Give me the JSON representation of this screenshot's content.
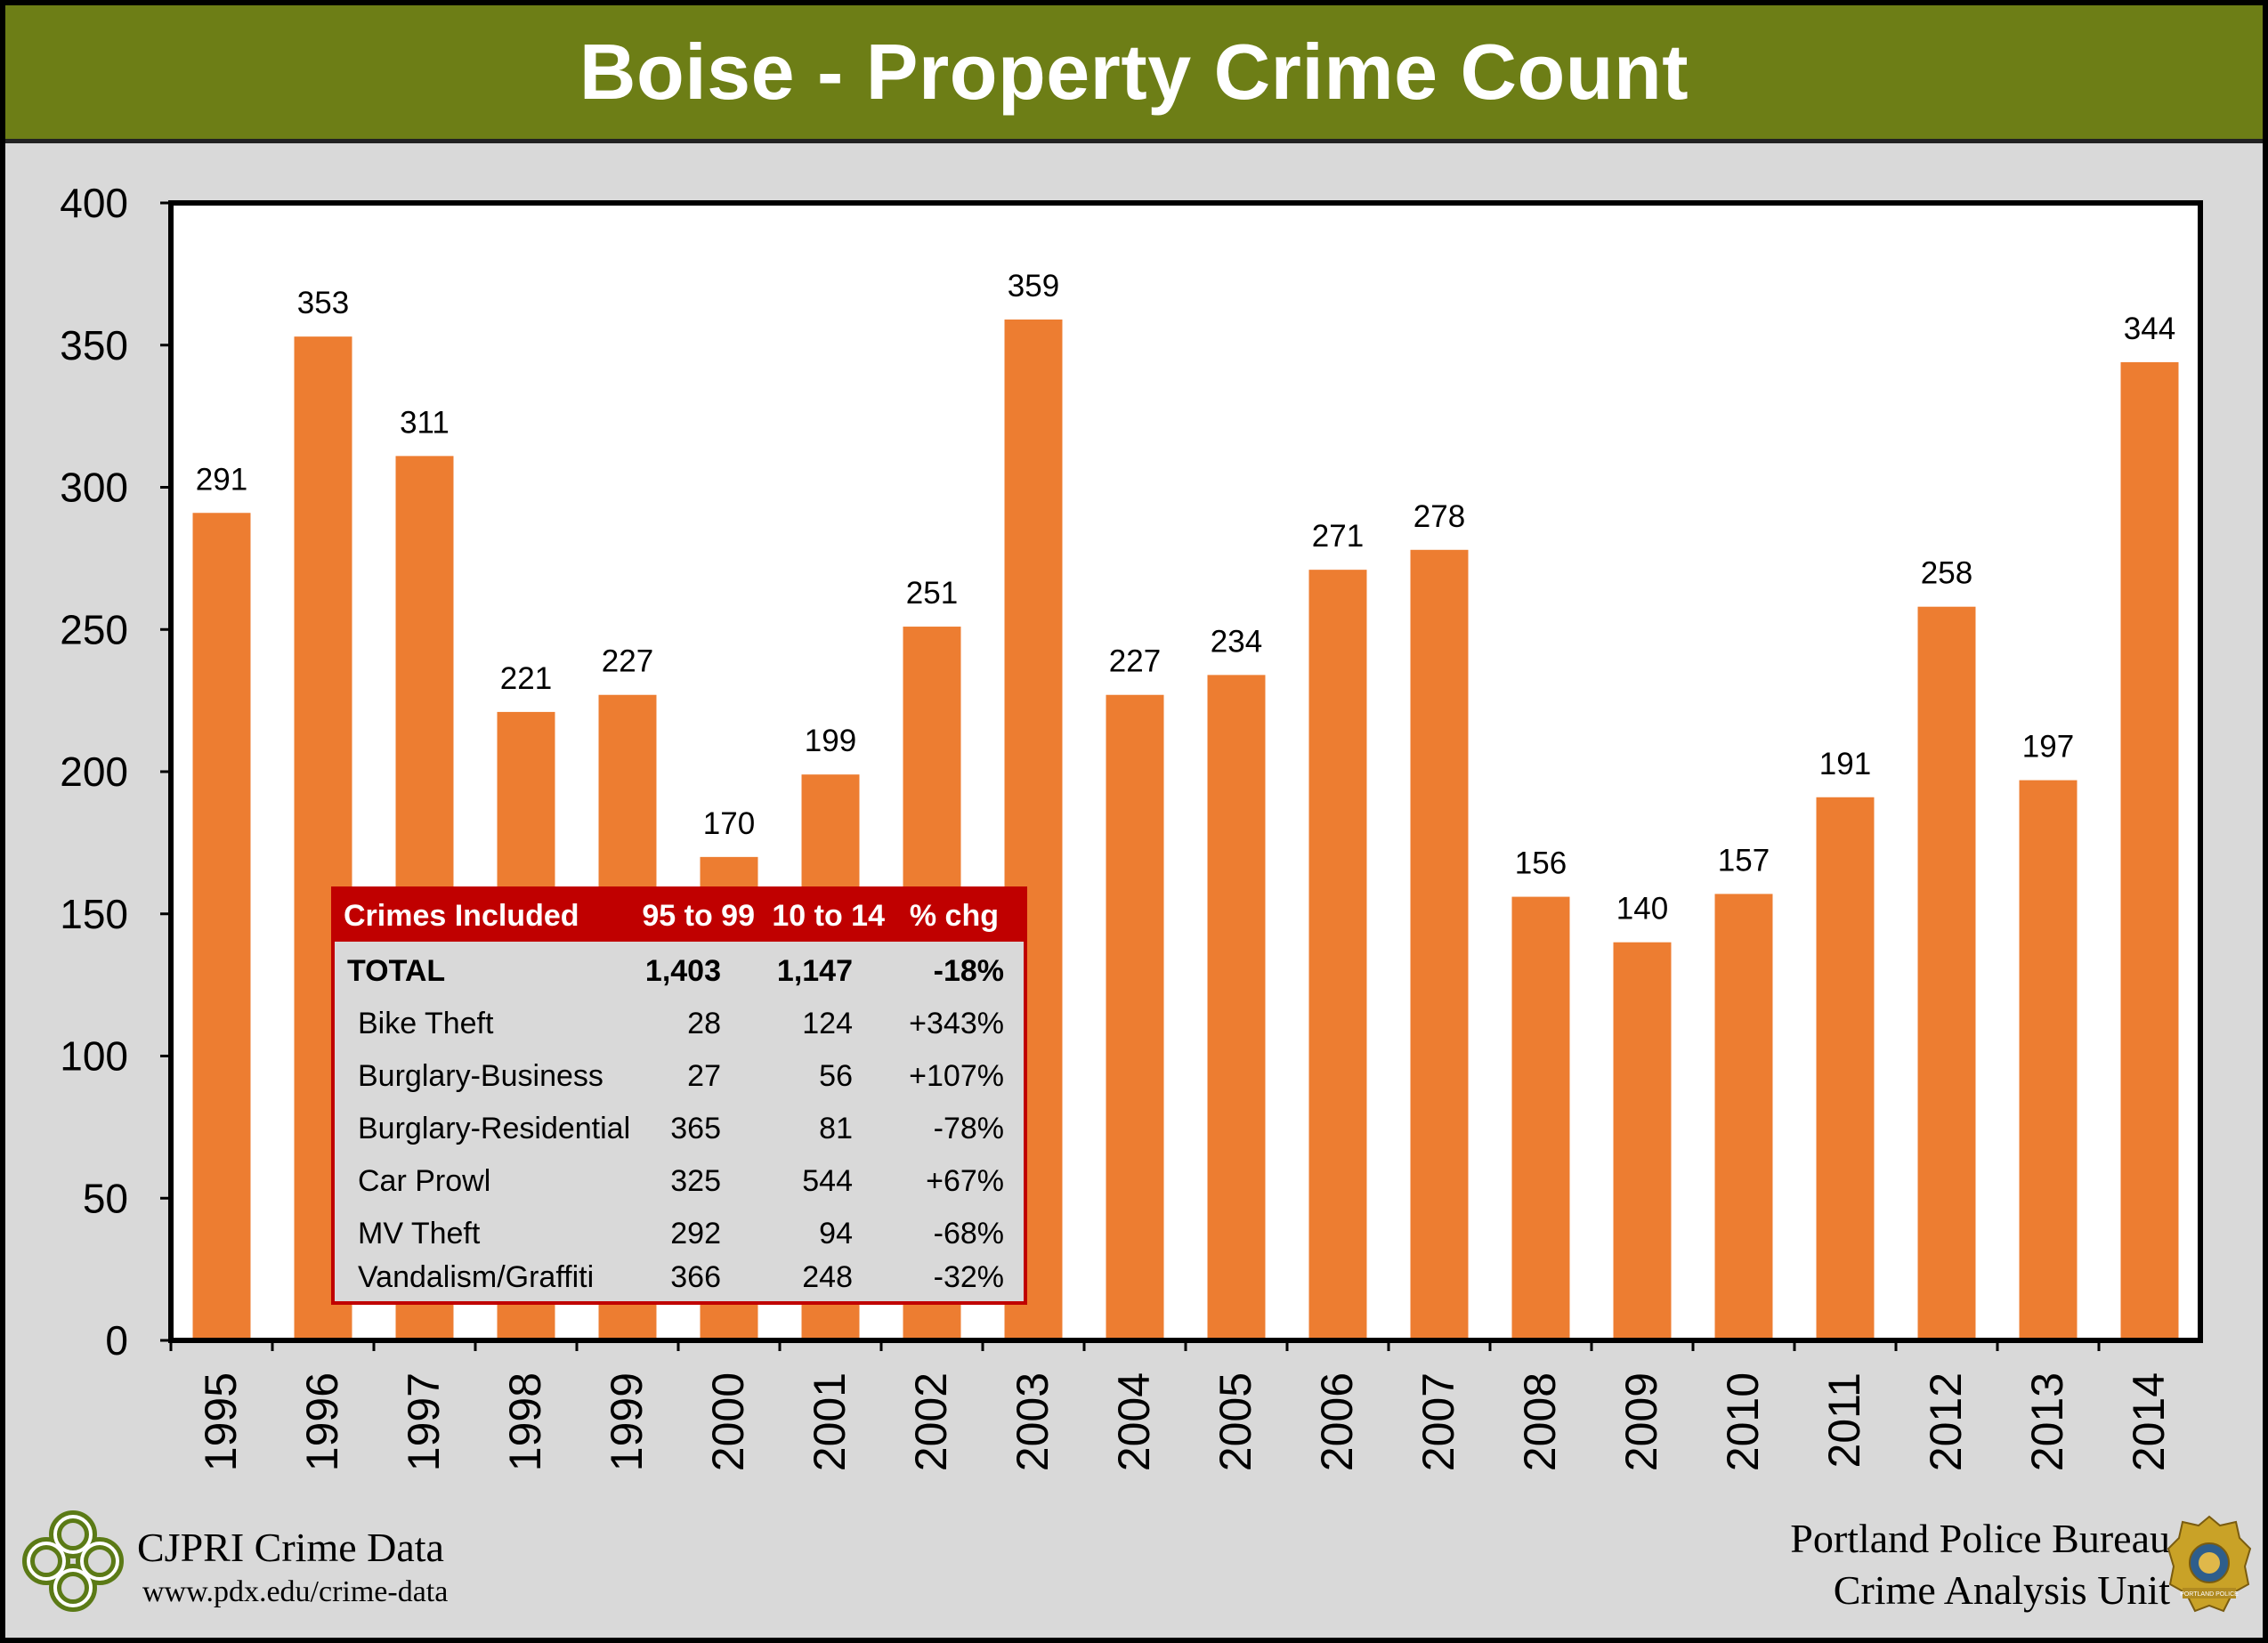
{
  "title": "Boise - Property Crime Count",
  "colors": {
    "bar": "#ed7d31",
    "header": "#6d7e16",
    "table_header": "#c00000",
    "background": "#d9d9d9"
  },
  "chart_data": {
    "type": "bar",
    "title": "Boise - Property Crime Count",
    "xlabel": "",
    "ylabel": "",
    "ylim": [
      0,
      400
    ],
    "yticks": [
      0,
      50,
      100,
      150,
      200,
      250,
      300,
      350,
      400
    ],
    "categories": [
      "1995",
      "1996",
      "1997",
      "1998",
      "1999",
      "2000",
      "2001",
      "2002",
      "2003",
      "2004",
      "2005",
      "2006",
      "2007",
      "2008",
      "2009",
      "2010",
      "2011",
      "2012",
      "2013",
      "2014"
    ],
    "values": [
      291,
      353,
      311,
      221,
      227,
      170,
      199,
      251,
      359,
      227,
      234,
      271,
      278,
      156,
      140,
      157,
      191,
      258,
      197,
      344
    ],
    "grid": false
  },
  "table": {
    "headers": [
      "Crimes Included",
      "95 to 99",
      "10 to 14",
      "% chg"
    ],
    "total": [
      "TOTAL",
      "1,403",
      "1,147",
      "-18%"
    ],
    "rows": [
      [
        "Bike Theft",
        "28",
        "124",
        "+343%"
      ],
      [
        "Burglary-Business",
        "27",
        "56",
        "+107%"
      ],
      [
        "Burglary-Residential",
        "365",
        "81",
        "-78%"
      ],
      [
        "Car Prowl",
        "325",
        "544",
        "+67%"
      ],
      [
        "MV Theft",
        "292",
        "94",
        "-68%"
      ],
      [
        "Vandalism/Graffiti",
        "366",
        "248",
        "-32%"
      ]
    ]
  },
  "footer": {
    "left_brand": "CJPRI Crime Data",
    "left_url": "www.pdx.edu/crime-data",
    "right_line1": "Portland Police Bureau",
    "right_line2": "Crime Analysis Unit",
    "badge_text": "PORTLAND POLICE"
  }
}
